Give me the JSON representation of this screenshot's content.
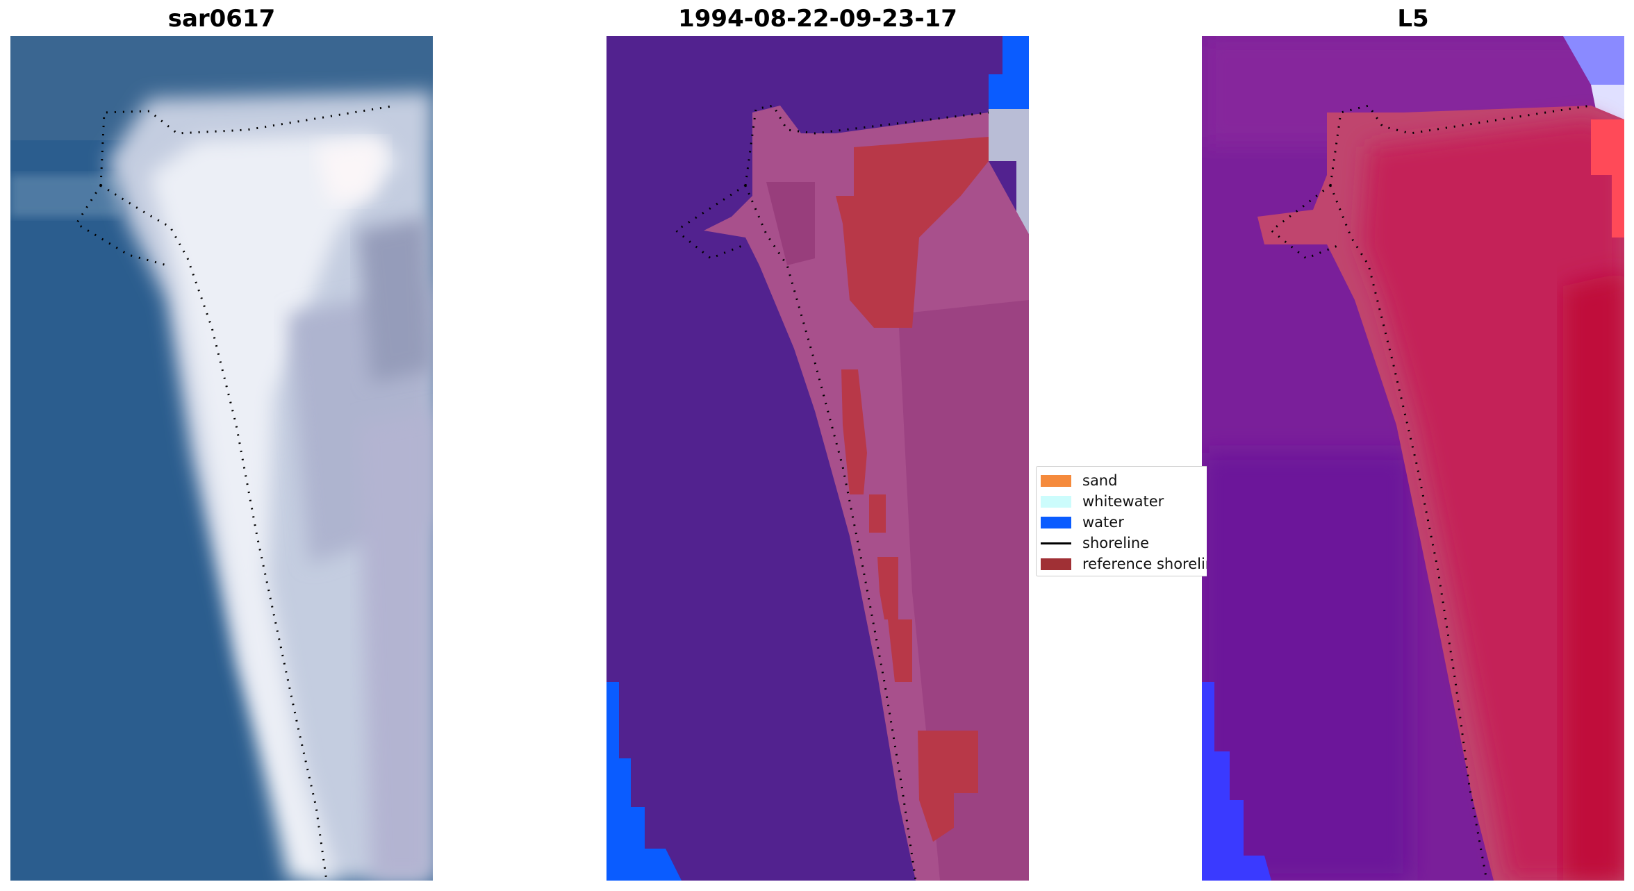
{
  "titles": [
    "sar0617",
    "1994-08-22-09-23-17",
    "L5"
  ],
  "legend": {
    "items": [
      {
        "label": "sand",
        "color": "#f58a3c",
        "kind": "patch"
      },
      {
        "label": "whitewater",
        "color": "#ccfcfc",
        "kind": "patch"
      },
      {
        "label": "water",
        "color": "#0a5cff",
        "kind": "patch"
      },
      {
        "label": "shoreline",
        "color": "#000000",
        "kind": "line"
      },
      {
        "label": "reference shoreline",
        "color": "#a03035",
        "kind": "patch"
      }
    ]
  },
  "colors": {
    "ocean_rgb": "#2b5d8e",
    "beach_rgb": "#dde3f0",
    "class_background": "#52228f",
    "class_pink": "#a8508c",
    "class_red": "#b83848",
    "class_water": "#0a5cff",
    "index_purple": "#7a1f9a",
    "index_red": "#c4163e",
    "index_blue": "#3a3aff"
  }
}
